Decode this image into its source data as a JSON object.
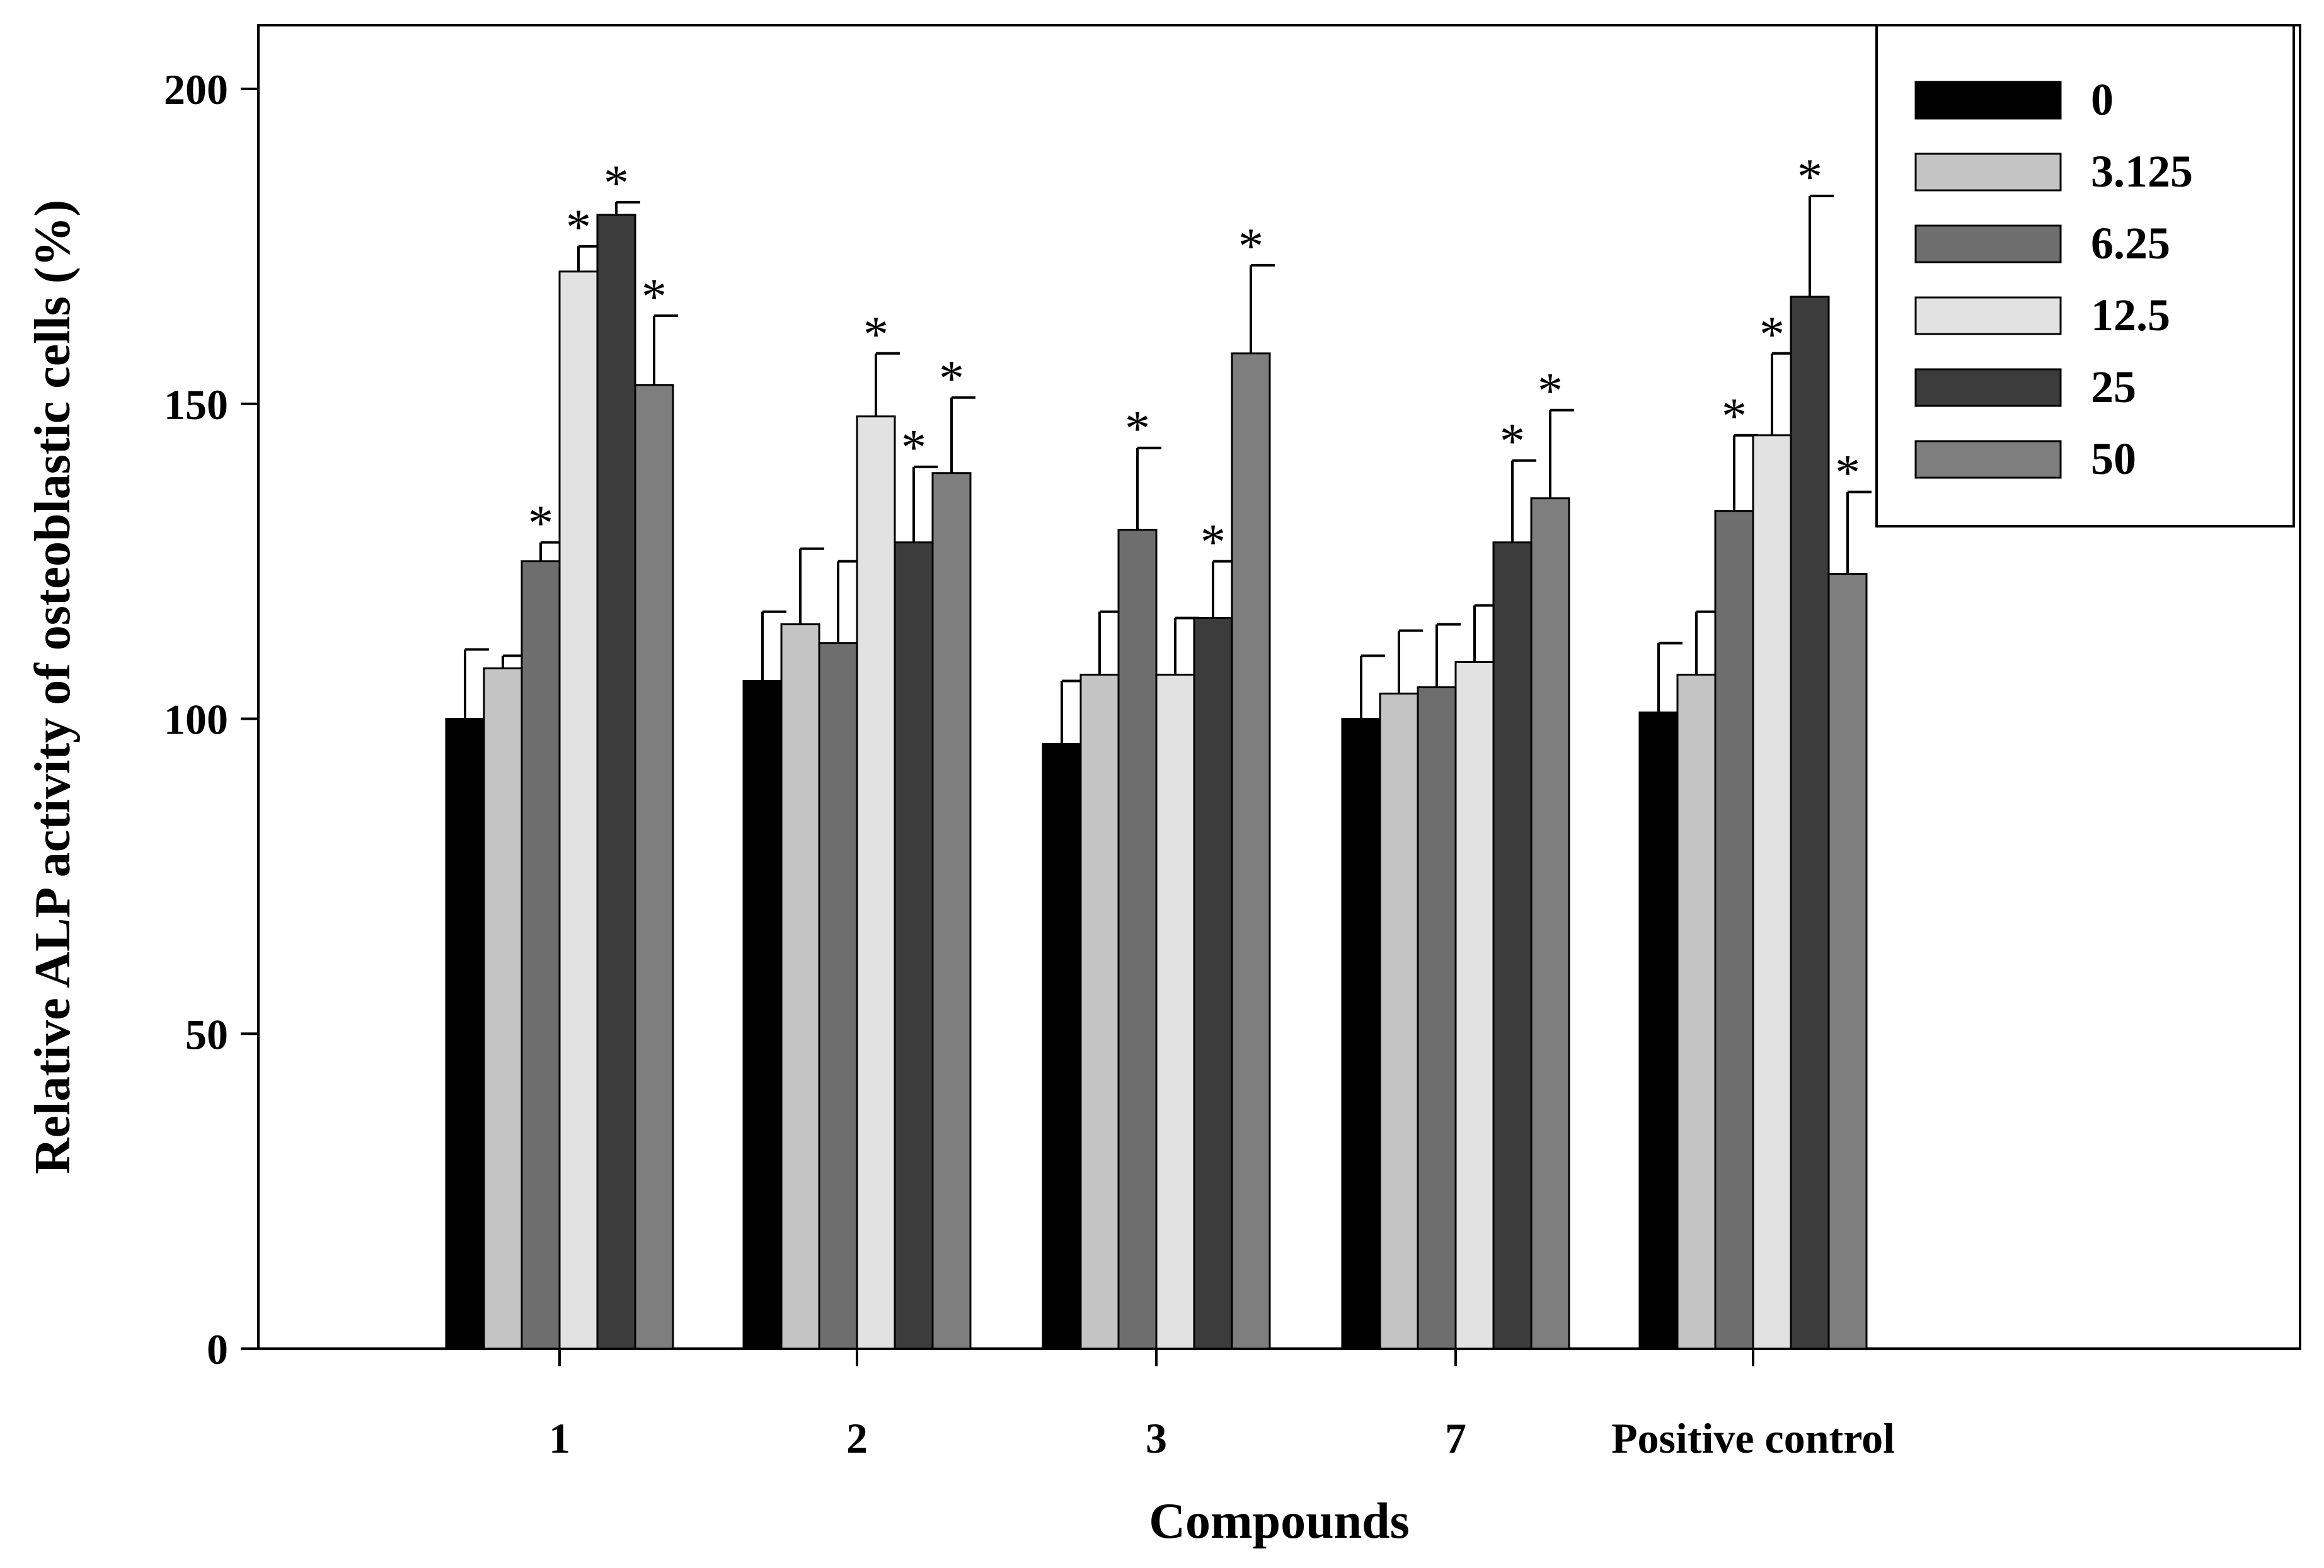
{
  "chart_data": {
    "type": "bar",
    "title": "",
    "xlabel": "Compounds",
    "ylabel": "Relative ALP activity of osteoblastic cells (%)",
    "ylim": [
      0,
      210
    ],
    "yticks": [
      0,
      50,
      100,
      150,
      200
    ],
    "categories": [
      "1",
      "2",
      "3",
      "7",
      "Positive control"
    ],
    "legend_position": "top-right",
    "significance_marker": "*",
    "series": [
      {
        "name": "0",
        "color": "#000000",
        "values": [
          100,
          106,
          96,
          100,
          101
        ],
        "errors": [
          11,
          11,
          10,
          10,
          11
        ],
        "significant": [
          false,
          false,
          false,
          false,
          false
        ]
      },
      {
        "name": "3.125",
        "color": "#c4c4c4",
        "values": [
          108,
          115,
          107,
          104,
          107
        ],
        "errors": [
          2,
          12,
          10,
          10,
          10
        ],
        "significant": [
          false,
          false,
          false,
          false,
          false
        ]
      },
      {
        "name": "6.25",
        "color": "#6e6e6e",
        "values": [
          125,
          112,
          130,
          105,
          133
        ],
        "errors": [
          3,
          13,
          13,
          10,
          12
        ],
        "significant": [
          true,
          false,
          true,
          false,
          true
        ]
      },
      {
        "name": "12.5",
        "color": "#e2e2e2",
        "values": [
          171,
          148,
          107,
          109,
          145
        ],
        "errors": [
          4,
          10,
          9,
          9,
          13
        ],
        "significant": [
          true,
          true,
          false,
          false,
          true
        ]
      },
      {
        "name": "25",
        "color": "#3c3c3c",
        "values": [
          180,
          128,
          116,
          128,
          167
        ],
        "errors": [
          2,
          12,
          9,
          13,
          16
        ],
        "significant": [
          true,
          true,
          true,
          true,
          true
        ]
      },
      {
        "name": "50",
        "color": "#7e7e7e",
        "values": [
          153,
          139,
          158,
          135,
          123
        ],
        "errors": [
          11,
          12,
          14,
          14,
          13
        ],
        "significant": [
          true,
          true,
          true,
          true,
          true
        ]
      }
    ]
  }
}
